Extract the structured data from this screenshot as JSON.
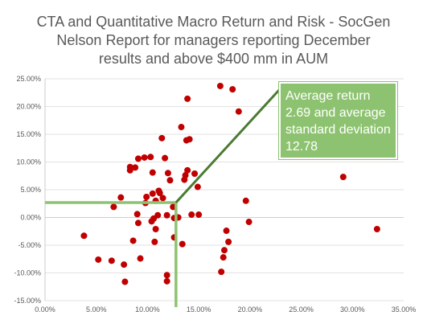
{
  "chart_data": {
    "type": "scatter",
    "title_lines": [
      "CTA and Quantitative Macro Return and Risk - SocGen",
      "Nelson Report for managers reporting December",
      "results and above $400 mm in AUM"
    ],
    "xlabel": "",
    "ylabel": "",
    "xlim": [
      0,
      35
    ],
    "ylim": [
      -15,
      25
    ],
    "x_ticks": [
      0,
      5,
      10,
      15,
      20,
      25,
      30,
      35
    ],
    "y_ticks": [
      -15,
      -10,
      -5,
      0,
      5,
      10,
      15,
      20,
      25
    ],
    "x_tick_labels": [
      "0.00%",
      "5.00%",
      "10.00%",
      "15.00%",
      "20.00%",
      "25.00%",
      "30.00%",
      "35.00%"
    ],
    "y_tick_labels": [
      "-15.00%",
      "-10.00%",
      "-5.00%",
      "0.00%",
      "5.00%",
      "10.00%",
      "15.00%",
      "20.00%",
      "25.00%"
    ],
    "grid": "horizontal",
    "marker_color": "#c00000",
    "average_line_color": "#8dc370",
    "pointer_color": "#4b7b32",
    "average": {
      "x": 12.78,
      "y": 2.69
    },
    "annotation_lines": [
      "Average return",
      "2.69 and average",
      "standard deviation",
      "12.78"
    ],
    "points": [
      [
        3.8,
        -3.3
      ],
      [
        5.2,
        -7.6
      ],
      [
        6.5,
        -7.8
      ],
      [
        6.7,
        1.9
      ],
      [
        7.4,
        3.6
      ],
      [
        7.7,
        -8.5
      ],
      [
        7.8,
        -11.6
      ],
      [
        8.3,
        8.5
      ],
      [
        8.3,
        9.1
      ],
      [
        8.6,
        -4.2
      ],
      [
        8.8,
        9.0
      ],
      [
        9.0,
        0.6
      ],
      [
        9.1,
        -1.0
      ],
      [
        9.1,
        10.6
      ],
      [
        9.3,
        -7.4
      ],
      [
        9.7,
        10.8
      ],
      [
        9.8,
        2.6
      ],
      [
        9.9,
        3.7
      ],
      [
        10.3,
        10.9
      ],
      [
        10.4,
        -0.7
      ],
      [
        10.5,
        8.1
      ],
      [
        10.5,
        4.3
      ],
      [
        10.6,
        -0.2
      ],
      [
        10.7,
        -4.4
      ],
      [
        10.8,
        3.0
      ],
      [
        10.8,
        -2.1
      ],
      [
        11.0,
        0.4
      ],
      [
        11.1,
        4.8
      ],
      [
        11.2,
        4.4
      ],
      [
        11.4,
        14.3
      ],
      [
        11.5,
        3.5
      ],
      [
        11.7,
        10.7
      ],
      [
        11.9,
        -10.4
      ],
      [
        11.9,
        -11.5
      ],
      [
        11.9,
        0.4
      ],
      [
        12.0,
        8.0
      ],
      [
        12.2,
        6.7
      ],
      [
        12.5,
        1.9
      ],
      [
        12.6,
        -0.1
      ],
      [
        12.6,
        -3.6
      ],
      [
        13.0,
        0.0
      ],
      [
        13.3,
        16.3
      ],
      [
        13.4,
        -4.8
      ],
      [
        13.6,
        6.8
      ],
      [
        13.7,
        7.6
      ],
      [
        13.8,
        13.9
      ],
      [
        13.9,
        21.4
      ],
      [
        13.9,
        8.5
      ],
      [
        14.1,
        14.1
      ],
      [
        14.3,
        0.5
      ],
      [
        14.6,
        7.9
      ],
      [
        14.9,
        5.5
      ],
      [
        15.0,
        0.5
      ],
      [
        17.1,
        23.7
      ],
      [
        17.2,
        -9.8
      ],
      [
        17.4,
        -7.2
      ],
      [
        17.5,
        -5.9
      ],
      [
        17.7,
        -2.4
      ],
      [
        17.9,
        -4.4
      ],
      [
        18.3,
        23.1
      ],
      [
        18.9,
        19.1
      ],
      [
        19.6,
        3.0
      ],
      [
        19.9,
        -0.8
      ],
      [
        29.1,
        7.3
      ],
      [
        32.4,
        -2.1
      ]
    ]
  }
}
